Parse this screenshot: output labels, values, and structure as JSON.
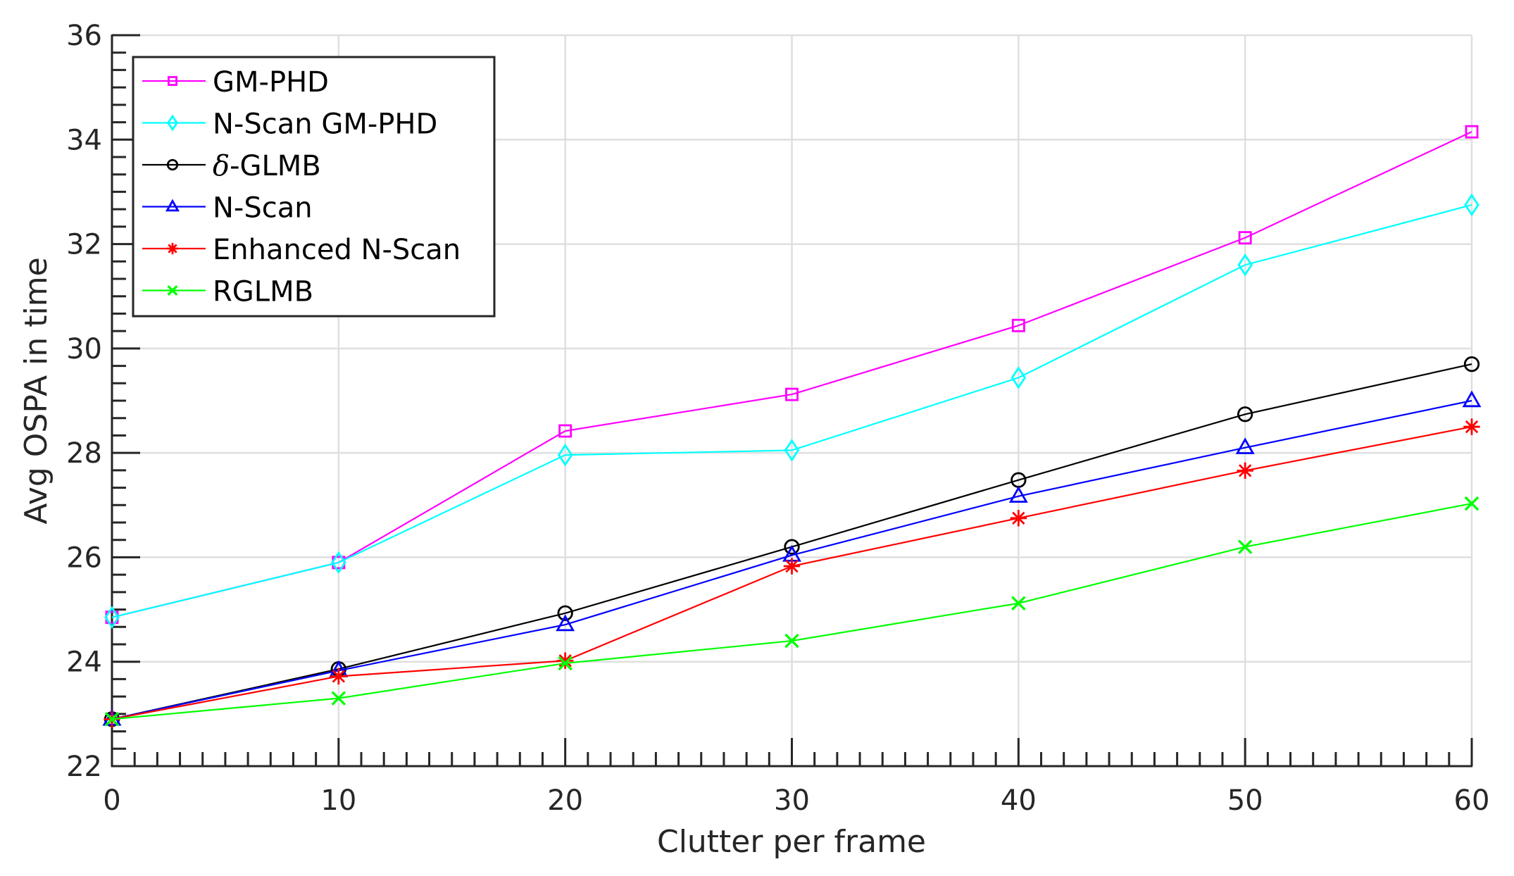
{
  "chart_data": {
    "type": "line",
    "title": "",
    "xlabel": "Clutter per frame",
    "ylabel": "Avg OSPA in time",
    "x": [
      0,
      10,
      20,
      30,
      40,
      50,
      60
    ],
    "xlim": [
      0,
      60
    ],
    "ylim": [
      22,
      36
    ],
    "xticks": [
      0,
      10,
      20,
      30,
      40,
      50,
      60
    ],
    "yticks": [
      22,
      24,
      26,
      28,
      30,
      32,
      34,
      36
    ],
    "x_minor_step": 1,
    "y_minor_step": 0.333,
    "grid": true,
    "legend_position": "upper-left",
    "series": [
      {
        "name": "GM-PHD",
        "color": "#ff00ff",
        "marker": "square",
        "values": [
          24.85,
          25.9,
          28.42,
          29.12,
          30.44,
          32.12,
          34.15
        ]
      },
      {
        "name": "N-Scan GM-PHD",
        "color": "#00ffff",
        "marker": "diamond",
        "values": [
          24.85,
          25.9,
          27.96,
          28.05,
          29.44,
          31.6,
          32.75
        ]
      },
      {
        "name": "δ-GLMB",
        "color": "#000000",
        "marker": "circle",
        "values": [
          22.9,
          23.86,
          24.93,
          26.2,
          27.48,
          28.74,
          29.7
        ]
      },
      {
        "name": "N-Scan",
        "color": "#0000ff",
        "marker": "triangle",
        "values": [
          22.9,
          23.83,
          24.71,
          26.04,
          27.17,
          28.1,
          29.0
        ]
      },
      {
        "name": "Enhanced N-Scan",
        "color": "#ff0000",
        "marker": "asterisk",
        "values": [
          22.9,
          23.72,
          24.02,
          25.83,
          26.75,
          27.66,
          28.5
        ]
      },
      {
        "name": "RGLMB",
        "color": "#00ff00",
        "marker": "x",
        "values": [
          22.9,
          23.3,
          23.97,
          24.4,
          25.12,
          26.2,
          27.03
        ]
      }
    ]
  },
  "legend": {
    "items": [
      {
        "prefix": "",
        "label": "GM-PHD"
      },
      {
        "prefix": "",
        "label": "N-Scan GM-PHD"
      },
      {
        "prefix": "δ",
        "label": "-GLMB"
      },
      {
        "prefix": "",
        "label": "N-Scan"
      },
      {
        "prefix": "",
        "label": "Enhanced N-Scan"
      },
      {
        "prefix": "",
        "label": "RGLMB"
      }
    ]
  },
  "colors": {
    "axis": "#262626",
    "grid": "#dfdfdf",
    "legend_border": "#262626"
  }
}
